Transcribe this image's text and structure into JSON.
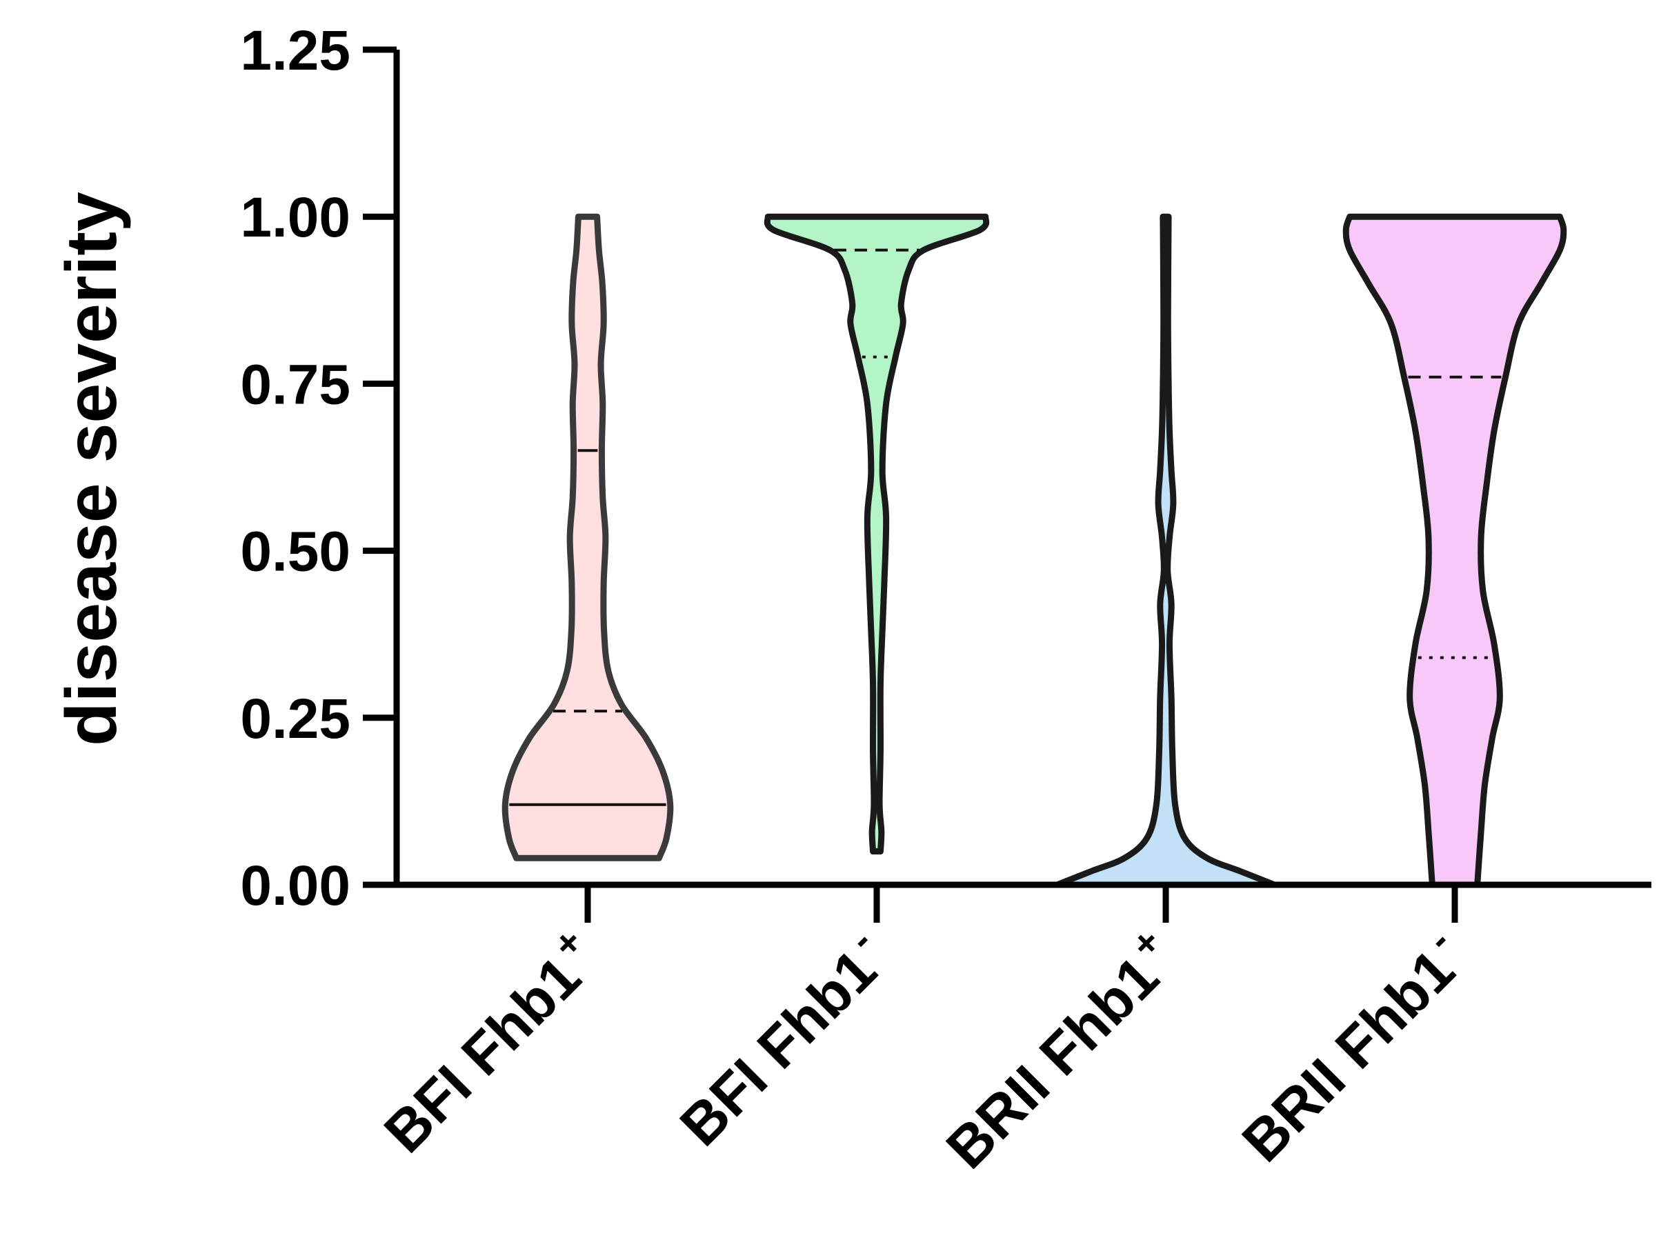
{
  "chart_data": {
    "type": "violin",
    "ylabel": "disease severity",
    "ylim": [
      0,
      1.25
    ],
    "yticks": [
      "0.00",
      "0.25",
      "0.50",
      "0.75",
      "1.00",
      "1.25"
    ],
    "ytick_values": [
      0,
      0.25,
      0.5,
      0.75,
      1.0,
      1.25
    ],
    "categories": [
      {
        "name": "BFI Fhb1",
        "sup": "+"
      },
      {
        "name": "BFI Fhb1",
        "sup": "-"
      },
      {
        "name": "BRII Fhb1",
        "sup": "+"
      },
      {
        "name": "BRII Fhb1",
        "sup": "-"
      }
    ],
    "series": [
      {
        "color": "#ffdfe0",
        "stroke": "#3a3a3a",
        "median": 0.26,
        "quartiles": [
          0.12,
          0.65
        ],
        "quartile_style": "solid",
        "median_style": "dashed",
        "profile": [
          [
            0.04,
            0.38
          ],
          [
            0.07,
            0.42
          ],
          [
            0.12,
            0.44
          ],
          [
            0.17,
            0.4
          ],
          [
            0.22,
            0.31
          ],
          [
            0.27,
            0.18
          ],
          [
            0.32,
            0.11
          ],
          [
            0.38,
            0.087
          ],
          [
            0.45,
            0.085
          ],
          [
            0.52,
            0.095
          ],
          [
            0.58,
            0.08
          ],
          [
            0.65,
            0.075
          ],
          [
            0.72,
            0.08
          ],
          [
            0.78,
            0.07
          ],
          [
            0.84,
            0.085
          ],
          [
            0.9,
            0.078
          ],
          [
            0.95,
            0.06
          ],
          [
            1.0,
            0.05
          ]
        ]
      },
      {
        "color": "#b4f5c8",
        "stroke": "#1a1a1a",
        "median": 0.95,
        "quartiles": [
          0.79
        ],
        "quartile_style": "dotted",
        "median_style": "dashed",
        "profile": [
          [
            0.05,
            0.02
          ],
          [
            0.08,
            0.025
          ],
          [
            0.12,
            0.015
          ],
          [
            0.2,
            0.02
          ],
          [
            0.3,
            0.02
          ],
          [
            0.38,
            0.03
          ],
          [
            0.45,
            0.04
          ],
          [
            0.55,
            0.05
          ],
          [
            0.62,
            0.03
          ],
          [
            0.72,
            0.05
          ],
          [
            0.79,
            0.1
          ],
          [
            0.84,
            0.14
          ],
          [
            0.87,
            0.13
          ],
          [
            0.92,
            0.17
          ],
          [
            0.95,
            0.25
          ],
          [
            0.98,
            0.55
          ],
          [
            1.0,
            0.58
          ]
        ]
      },
      {
        "color": "#c2e1f7",
        "stroke": "#1a1a1a",
        "median": null,
        "quartiles": [],
        "quartile_style": "dashed",
        "median_style": "dashed",
        "profile": [
          [
            0.0,
            0.58
          ],
          [
            0.02,
            0.4
          ],
          [
            0.04,
            0.22
          ],
          [
            0.07,
            0.1
          ],
          [
            0.12,
            0.05
          ],
          [
            0.2,
            0.035
          ],
          [
            0.28,
            0.03
          ],
          [
            0.36,
            0.02
          ],
          [
            0.42,
            0.03
          ],
          [
            0.47,
            0.01
          ],
          [
            0.52,
            0.02
          ],
          [
            0.57,
            0.04
          ],
          [
            0.62,
            0.03
          ],
          [
            0.68,
            0.02
          ],
          [
            0.75,
            0.015
          ],
          [
            0.85,
            0.012
          ],
          [
            1.0,
            0.015
          ]
        ]
      },
      {
        "color": "#f8c8f8",
        "stroke": "#1a1a1a",
        "median": 0.76,
        "quartiles": [
          0.34
        ],
        "quartile_style": "dotted",
        "median_style": "dashed",
        "profile": [
          [
            0.0,
            0.12
          ],
          [
            0.08,
            0.14
          ],
          [
            0.15,
            0.16
          ],
          [
            0.22,
            0.2
          ],
          [
            0.28,
            0.24
          ],
          [
            0.36,
            0.21
          ],
          [
            0.44,
            0.15
          ],
          [
            0.52,
            0.14
          ],
          [
            0.6,
            0.17
          ],
          [
            0.68,
            0.21
          ],
          [
            0.76,
            0.27
          ],
          [
            0.84,
            0.34
          ],
          [
            0.9,
            0.46
          ],
          [
            0.95,
            0.56
          ],
          [
            0.98,
            0.58
          ],
          [
            1.0,
            0.56
          ]
        ]
      }
    ]
  }
}
